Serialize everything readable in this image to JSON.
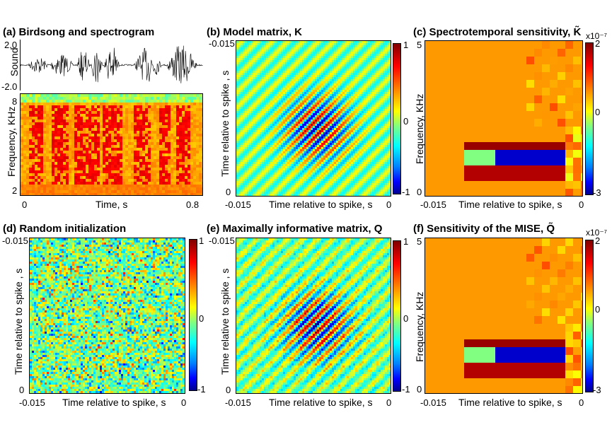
{
  "panels": {
    "a": {
      "title": "(a) Birdsong and spectrogram",
      "sound_label": "Sound",
      "sound_ticks": [
        "2.0",
        "-2.0"
      ],
      "freq_label": "Frequency, KHz",
      "freq_ticks": [
        "8",
        "2"
      ],
      "x_ticks": [
        "0",
        "0.8"
      ],
      "x_label": "Time, s"
    },
    "b": {
      "title": "(b) Model matrix, K",
      "y_label": "Time relative to spike , s",
      "x_label": "Time relative to spike, s",
      "y_top": "-0.015",
      "y_bottom": "0",
      "x_left": "-0.015",
      "x_right": "0",
      "cbar_ticks": [
        "1",
        "0",
        "-1"
      ]
    },
    "c": {
      "title": "(c) Spectrotemporal sensitivity, K̃",
      "y_label": "Frequency, KHz",
      "x_label": "Time relative to spike, s",
      "y_top": "5",
      "y_bottom": "0",
      "x_left": "-0.015",
      "x_right": "0",
      "cbar_exp": "x10⁻⁷",
      "cbar_ticks": [
        "2",
        "0",
        "-3"
      ]
    },
    "d": {
      "title": "(d) Random initialization",
      "y_label": "Time relative to spike , s",
      "x_label": "Time relative to spike, s",
      "y_top": "-0.015",
      "y_bottom": "0",
      "x_left": "-0.015",
      "x_right": "0",
      "cbar_ticks": [
        "1",
        "0",
        "-1"
      ]
    },
    "e": {
      "title": "(e) Maximally informative matrix, Q",
      "y_label": "Time relative to spike , s",
      "x_label": "Time relative to spike, s",
      "y_top": "-0.015",
      "y_bottom": "0",
      "x_left": "-0.015",
      "x_right": "0",
      "cbar_ticks": [
        "1",
        "0",
        "-1"
      ]
    },
    "f": {
      "title": "(f) Sensitivity of the MISE, Q̃",
      "y_label": "Frequency, KHz",
      "x_label": "Time relative to spike, s",
      "y_top": "5",
      "y_bottom": "0",
      "x_left": "-0.015",
      "x_right": "0",
      "cbar_exp": "x10⁻⁷",
      "cbar_ticks": [
        "2",
        "0",
        "-3"
      ]
    }
  }
}
